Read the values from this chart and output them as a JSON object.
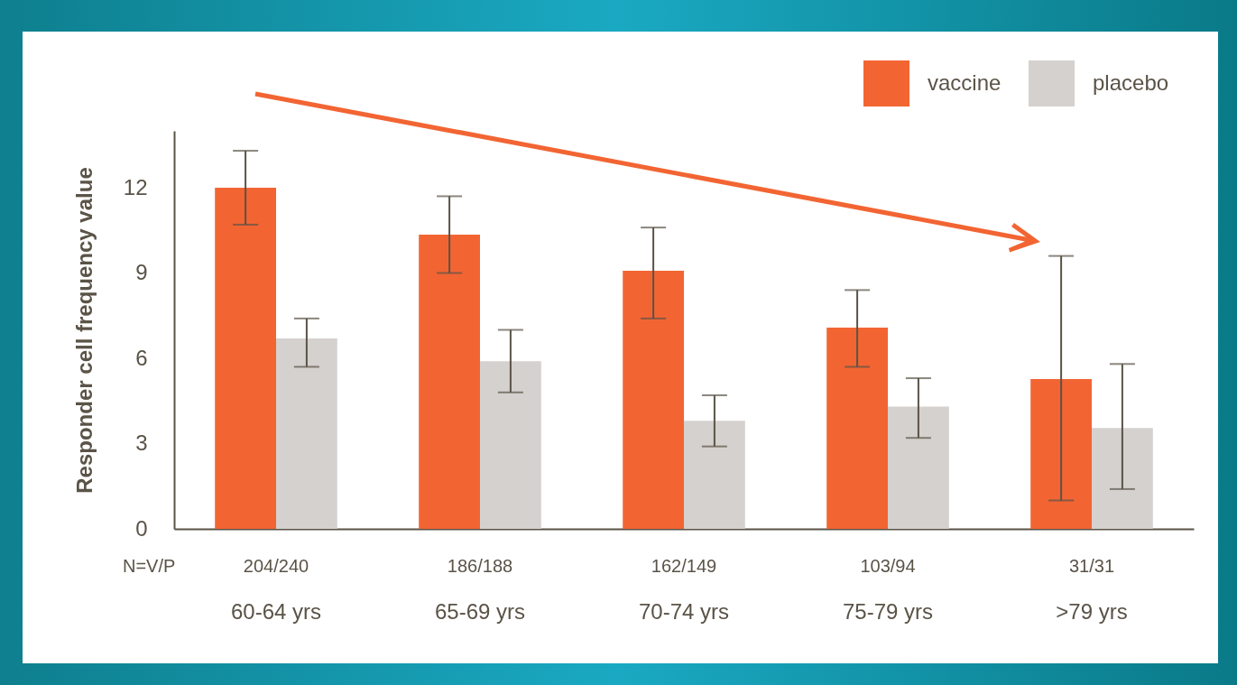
{
  "chart_data": {
    "type": "bar",
    "ylabel": "Responder cell frequency value",
    "categories": [
      "60-64 yrs",
      "65-69 yrs",
      "70-74 yrs",
      "75-79 yrs",
      ">79 yrs"
    ],
    "series": [
      {
        "name": "vaccine",
        "color": "#f26533",
        "values": [
          12.0,
          10.35,
          9.08,
          7.08,
          5.27
        ],
        "errors": [
          [
            10.7,
            13.3
          ],
          [
            9.0,
            11.7
          ],
          [
            7.4,
            10.6
          ],
          [
            5.7,
            8.4
          ],
          [
            1.0,
            9.6
          ]
        ]
      },
      {
        "name": "placebo",
        "color": "#d5d1ce",
        "values": [
          6.7,
          5.9,
          3.8,
          4.3,
          3.55
        ],
        "errors": [
          [
            5.7,
            7.4
          ],
          [
            4.8,
            7.0
          ],
          [
            2.9,
            4.7
          ],
          [
            3.2,
            5.3
          ],
          [
            1.4,
            5.8
          ]
        ]
      }
    ],
    "ylim": [
      0,
      14
    ],
    "yticks": [
      0,
      3,
      6,
      9,
      12
    ],
    "grid": false,
    "legend": "top right",
    "annotations": [
      "N=V/P",
      "204/240",
      "186/188",
      "162/149",
      "103/94",
      "31/31"
    ]
  }
}
